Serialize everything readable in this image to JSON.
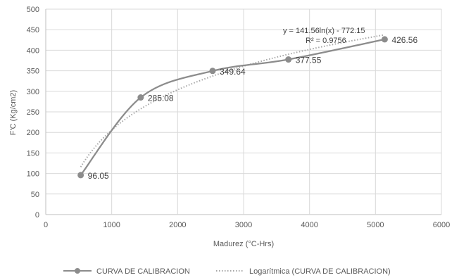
{
  "chart_data": {
    "type": "scatter",
    "title": "",
    "xlabel": "Madurez (°C-Hrs)",
    "ylabel": "F'C (Kg/cm2)",
    "xlim": [
      0,
      6000
    ],
    "ylim": [
      0,
      500
    ],
    "xticks": [
      0,
      1000,
      2000,
      3000,
      4000,
      5000,
      6000
    ],
    "yticks": [
      0,
      50,
      100,
      150,
      200,
      250,
      300,
      350,
      400,
      450,
      500
    ],
    "xtick_labels": [
      "0",
      "1000",
      "2000",
      "3000",
      "4000",
      "5000",
      "6000"
    ],
    "ytick_labels": [
      "0",
      "50",
      "100",
      "150",
      "200",
      "250",
      "300",
      "350",
      "400",
      "450",
      "500"
    ],
    "grid": "vertical-and-horizontal",
    "legend_position": "bottom",
    "series": [
      {
        "name": "CURVA DE CALIBRACION",
        "style": "smooth-line-with-markers",
        "color": "#8c8c8c",
        "points": [
          {
            "x": 530,
            "y": 96.05,
            "label": "96.05"
          },
          {
            "x": 1440,
            "y": 285.08,
            "label": "285.08"
          },
          {
            "x": 2530,
            "y": 349.64,
            "label": "349.64"
          },
          {
            "x": 3680,
            "y": 377.55,
            "label": "377.55"
          },
          {
            "x": 5140,
            "y": 426.56,
            "label": "426.56"
          }
        ]
      },
      {
        "name": "Logarítmica (CURVA DE CALIBRACION)",
        "style": "dotted-trendline",
        "color": "#a6a6a6",
        "trendline": {
          "type": "logarithmic",
          "a": 141.56,
          "b": -772.15,
          "x_range": [
            530,
            5140
          ]
        }
      }
    ],
    "annotations": {
      "equation": "y = 141.56ln(x) - 772.15",
      "r_squared": "R² = 0.9756"
    }
  }
}
